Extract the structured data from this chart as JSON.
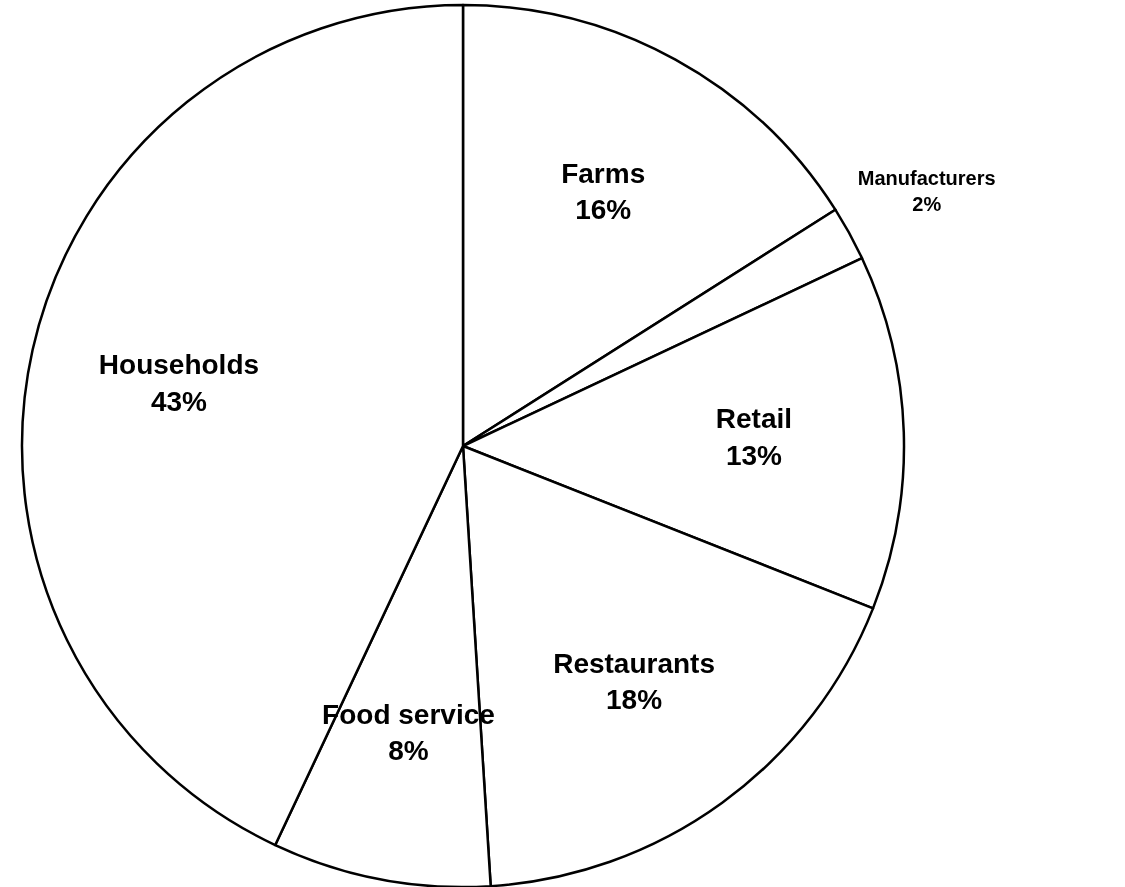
{
  "chart_data": {
    "type": "pie",
    "categories": [
      "Farms",
      "Manufacturers",
      "Retail",
      "Restaurants",
      "Food service",
      "Households"
    ],
    "values": [
      16,
      2,
      13,
      18,
      8,
      43
    ],
    "colors": [
      "#ffffff",
      "#ffffff",
      "#ffffff",
      "#ffffff",
      "#ffffff",
      "#ffffff"
    ],
    "value_labels": [
      "16%",
      "2%",
      "13%",
      "18%",
      "8%",
      "43%"
    ]
  }
}
